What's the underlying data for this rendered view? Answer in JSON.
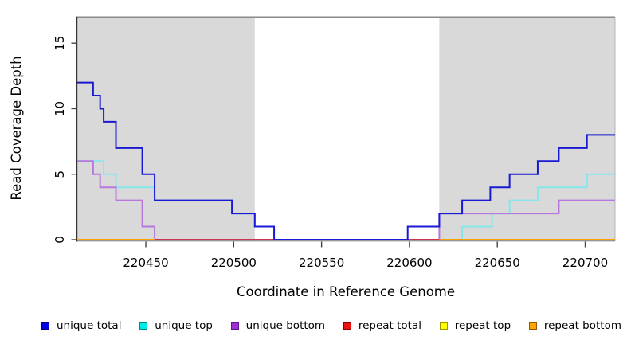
{
  "axes": {
    "x_title": "Coordinate in Reference Genome",
    "y_title": "Read Coverage Depth"
  },
  "chart_data": {
    "type": "line",
    "step": true,
    "title": "",
    "xlabel": "Coordinate in Reference Genome",
    "ylabel": "Read Coverage Depth",
    "xlim": [
      220411,
      220717
    ],
    "ylim": [
      0,
      17
    ],
    "x_ticks": [
      220450,
      220500,
      220550,
      220600,
      220650,
      220700
    ],
    "y_ticks": [
      0,
      5,
      10,
      15
    ],
    "grid": false,
    "legend_position": "bottom",
    "shade_color": "#d9d9d9",
    "frame_color": "#8a8a8a",
    "axis_color": "#333333",
    "shaded_regions": [
      {
        "x1": 220411,
        "x2": 220512
      },
      {
        "x1": 220617,
        "x2": 220717
      }
    ],
    "series": [
      {
        "name": "unique total",
        "color": "#1a1ad2",
        "points": [
          [
            220411,
            12
          ],
          [
            220420,
            11
          ],
          [
            220424,
            10
          ],
          [
            220426,
            9
          ],
          [
            220433,
            7
          ],
          [
            220448,
            5
          ],
          [
            220455,
            3
          ],
          [
            220499,
            2
          ],
          [
            220512,
            1
          ],
          [
            220523,
            0
          ],
          [
            220599,
            1
          ],
          [
            220617,
            2
          ],
          [
            220630,
            3
          ],
          [
            220646,
            4
          ],
          [
            220657,
            5
          ],
          [
            220673,
            6
          ],
          [
            220685,
            7
          ],
          [
            220701,
            8
          ]
        ]
      },
      {
        "name": "unique top",
        "color": "#85e7ea",
        "points": [
          [
            220411,
            6
          ],
          [
            220426,
            5
          ],
          [
            220433,
            4
          ],
          [
            220455,
            3
          ],
          [
            220499,
            2
          ],
          [
            220512,
            1
          ],
          [
            220523,
            0
          ],
          [
            220630,
            1
          ],
          [
            220647,
            2
          ],
          [
            220657,
            3
          ],
          [
            220673,
            4
          ],
          [
            220701,
            5
          ]
        ]
      },
      {
        "name": "unique bottom",
        "color": "#b678dc",
        "points": [
          [
            220411,
            6
          ],
          [
            220420,
            5
          ],
          [
            220424,
            4
          ],
          [
            220433,
            3
          ],
          [
            220448,
            1
          ],
          [
            220455,
            0
          ],
          [
            220617,
            2
          ],
          [
            220685,
            3
          ]
        ]
      },
      {
        "name": "repeat total",
        "color": "#cc3350",
        "points": [
          [
            220411,
            0
          ]
        ]
      },
      {
        "name": "repeat top",
        "color": "#ffff00",
        "points": [
          [
            220411,
            0
          ]
        ]
      },
      {
        "name": "repeat bottom",
        "color": "#ffa200",
        "points": [
          [
            220411,
            0
          ]
        ]
      }
    ],
    "zero_line_segments": [
      {
        "from": 220411,
        "to": 220455,
        "color": "#ffa200"
      },
      {
        "from": 220455,
        "to": 220523,
        "color": "#cc3350"
      },
      {
        "from": 220523,
        "to": 220599,
        "color": "#1a1ad2"
      },
      {
        "from": 220599,
        "to": 220617,
        "color": "#cc3350"
      },
      {
        "from": 220617,
        "to": 220717,
        "color": "#ffa200"
      }
    ]
  },
  "legend": {
    "items": [
      {
        "label": "unique total",
        "fill": "#0000e6",
        "border": "#000080"
      },
      {
        "label": "unique top",
        "fill": "#00e8e8",
        "border": "#008b8b"
      },
      {
        "label": "unique bottom",
        "fill": "#a02fd6",
        "border": "#5a1a8b"
      },
      {
        "label": "repeat total",
        "fill": "#ee1111",
        "border": "#8b0000"
      },
      {
        "label": "repeat top",
        "fill": "#ffff00",
        "border": "#9a9a00"
      },
      {
        "label": "repeat bottom",
        "fill": "#ffa500",
        "border": "#8b5a00"
      }
    ]
  }
}
